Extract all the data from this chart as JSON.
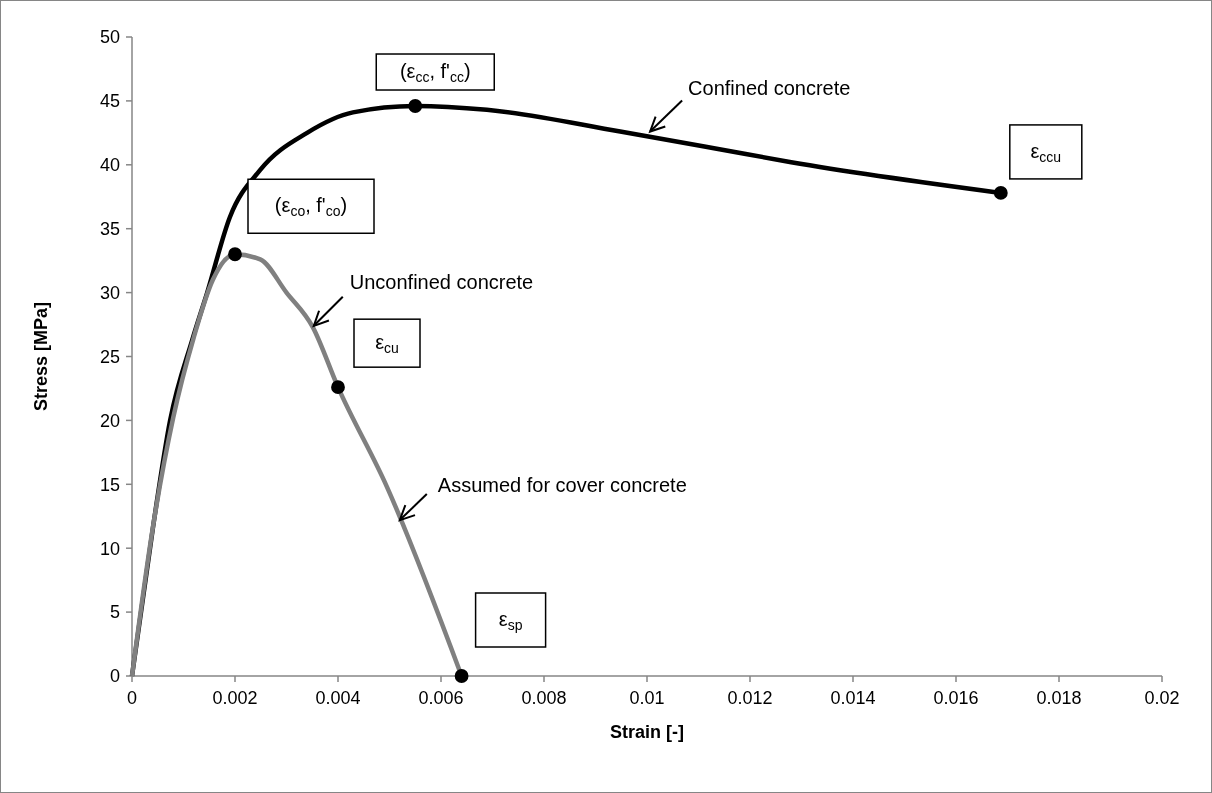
{
  "chart_data": {
    "type": "line",
    "xlabel": "Strain [-]",
    "ylabel": "Stress [MPa]",
    "xlim": [
      0,
      0.02
    ],
    "xticks": [
      0,
      0.002,
      0.004,
      0.006,
      0.008,
      0.01,
      0.012,
      0.014,
      0.016,
      0.018,
      0.02
    ],
    "ylim": [
      0,
      50
    ],
    "yticks": [
      0,
      5,
      10,
      15,
      20,
      25,
      30,
      35,
      40,
      45,
      50
    ],
    "grid": false,
    "line_style": "solid",
    "series": [
      {
        "color": "#000000",
        "marker": "none",
        "x": [
          0,
          0.00041,
          0.00074,
          0.00117,
          0.00146,
          0.0019,
          0.00249,
          0.0034,
          0.00429,
          0.0055,
          0.00689,
          0.00948,
          0.0113,
          0.0128,
          0.01687
        ],
        "values": [
          0,
          11.7,
          20,
          26.3,
          30,
          35.9,
          39.6,
          42.5,
          44.1,
          44.6,
          44.3,
          42.6,
          41.3,
          40.2,
          37.8
        ]
      },
      {
        "color": "#808080",
        "marker": "none",
        "x": [
          0,
          0.0004,
          0.0008,
          0.0012,
          0.00157,
          0.002,
          0.00249,
          0.003,
          0.00351,
          0.004,
          0.00495,
          0.0064
        ],
        "values": [
          0,
          11.5,
          20.2,
          26.5,
          31,
          33,
          32.6,
          30,
          27.3,
          22.6,
          14.8,
          0
        ]
      },
      {
        "type": "scatter",
        "color": "#000000",
        "marker": "circle",
        "x": [
          0.0055,
          0.01687,
          0.002,
          0.004,
          0.0064
        ],
        "values": [
          44.6,
          37.8,
          33,
          22.6,
          0
        ]
      }
    ],
    "annotations": [
      {
        "text": "(ε$_{cc}$, f'$_{cc}$)",
        "x": 0.0055,
        "y": 44.6
      },
      {
        "text": "ε$_{ccu}$",
        "x": 0.01687,
        "y": 37.8
      },
      {
        "text": "(ε$_{co}$, f'$_{co}$)",
        "x": 0.002,
        "y": 33
      },
      {
        "text": "ε$_{cu}$",
        "x": 0.004,
        "y": 22.6
      },
      {
        "text": "ε$_{sp}$",
        "x": 0.0064,
        "y": 0
      },
      {
        "text": "Confined concrete",
        "x": 0.01006,
        "y": 42.6
      },
      {
        "text": "Unconfined concrete",
        "x": 0.00353,
        "y": 27.4
      },
      {
        "text": "Assumed for cover concrete",
        "x": 0.0052,
        "y": 12.2
      }
    ]
  }
}
